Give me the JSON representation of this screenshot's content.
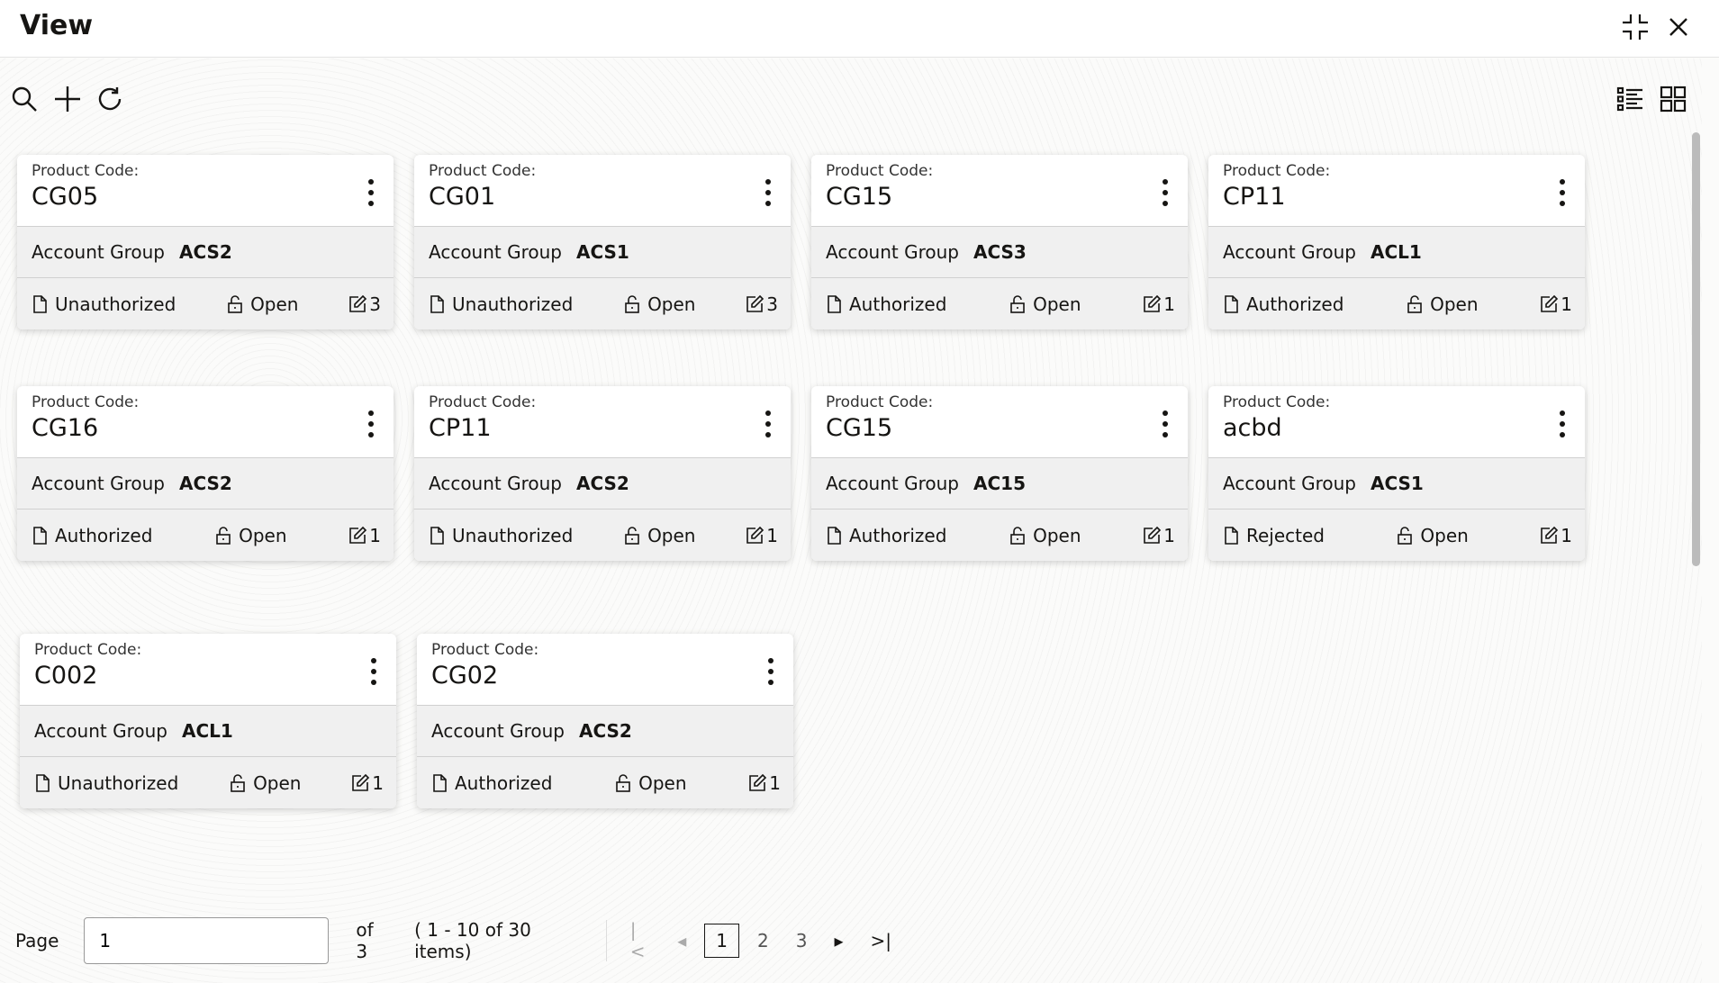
{
  "window": {
    "title": "View",
    "icons": [
      "collapse-icon",
      "close-icon"
    ]
  },
  "toolbar": {
    "icons": [
      "search-icon",
      "add-icon",
      "refresh-icon",
      "list-view-icon",
      "grid-view-icon"
    ]
  },
  "cards": [
    {
      "label": "Product Code:",
      "code": "CG05",
      "group_label": "Account Group",
      "group": "ACS2",
      "status": "Unauthorized",
      "state": "Open",
      "mods": "3"
    },
    {
      "label": "Product Code:",
      "code": "CG01",
      "group_label": "Account Group",
      "group": "ACS1",
      "status": "Unauthorized",
      "state": "Open",
      "mods": "3"
    },
    {
      "label": "Product Code:",
      "code": "CG15",
      "group_label": "Account Group",
      "group": "ACS3",
      "status": "Authorized",
      "state": "Open",
      "mods": "1"
    },
    {
      "label": "Product Code:",
      "code": "CP11",
      "group_label": "Account Group",
      "group": "ACL1",
      "status": "Authorized",
      "state": "Open",
      "mods": "1"
    },
    {
      "label": "Product Code:",
      "code": "CG16",
      "group_label": "Account Group",
      "group": "ACS2",
      "status": "Authorized",
      "state": "Open",
      "mods": "1"
    },
    {
      "label": "Product Code:",
      "code": "CP11",
      "group_label": "Account Group",
      "group": "ACS2",
      "status": "Unauthorized",
      "state": "Open",
      "mods": "1"
    },
    {
      "label": "Product Code:",
      "code": "CG15",
      "group_label": "Account Group",
      "group": "AC15",
      "status": "Authorized",
      "state": "Open",
      "mods": "1"
    },
    {
      "label": "Product Code:",
      "code": "acbd",
      "group_label": "Account Group",
      "group": "ACS1",
      "status": "Rejected",
      "state": "Open",
      "mods": "1"
    },
    {
      "label": "Product Code:",
      "code": "C002",
      "group_label": "Account Group",
      "group": "ACL1",
      "status": "Unauthorized",
      "state": "Open",
      "mods": "1"
    },
    {
      "label": "Product Code:",
      "code": "CG02",
      "group_label": "Account Group",
      "group": "ACS2",
      "status": "Authorized",
      "state": "Open",
      "mods": "1"
    }
  ],
  "pagination": {
    "page_label": "Page",
    "page_value": "1",
    "of_label": "of 3",
    "items_label": "( 1 - 10 of 30 items)",
    "pages": [
      "1",
      "2",
      "3"
    ],
    "current": "1"
  }
}
